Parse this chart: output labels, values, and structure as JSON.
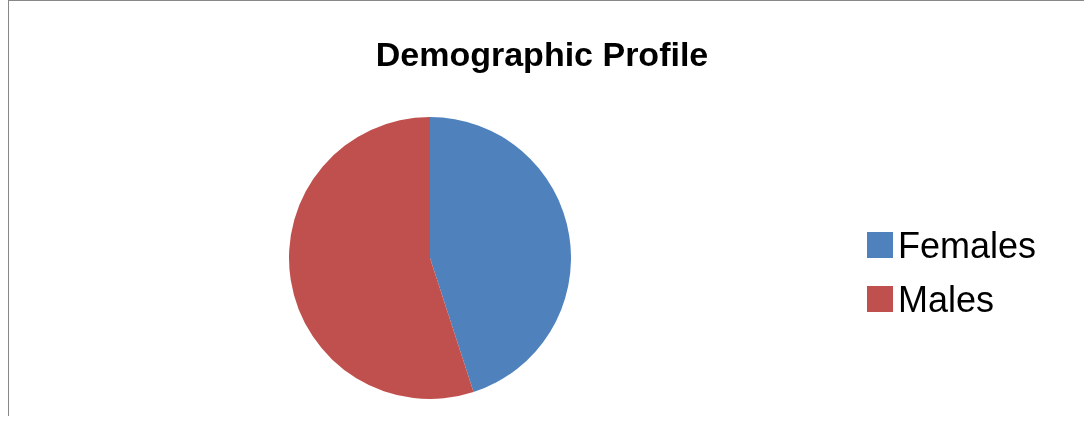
{
  "chart_data": {
    "type": "pie",
    "title": "Demographic Profile",
    "categories": [
      "Females",
      "Males"
    ],
    "values": [
      45,
      55
    ],
    "colors": [
      "#4f81bd",
      "#c0504d"
    ],
    "legend": "right"
  }
}
